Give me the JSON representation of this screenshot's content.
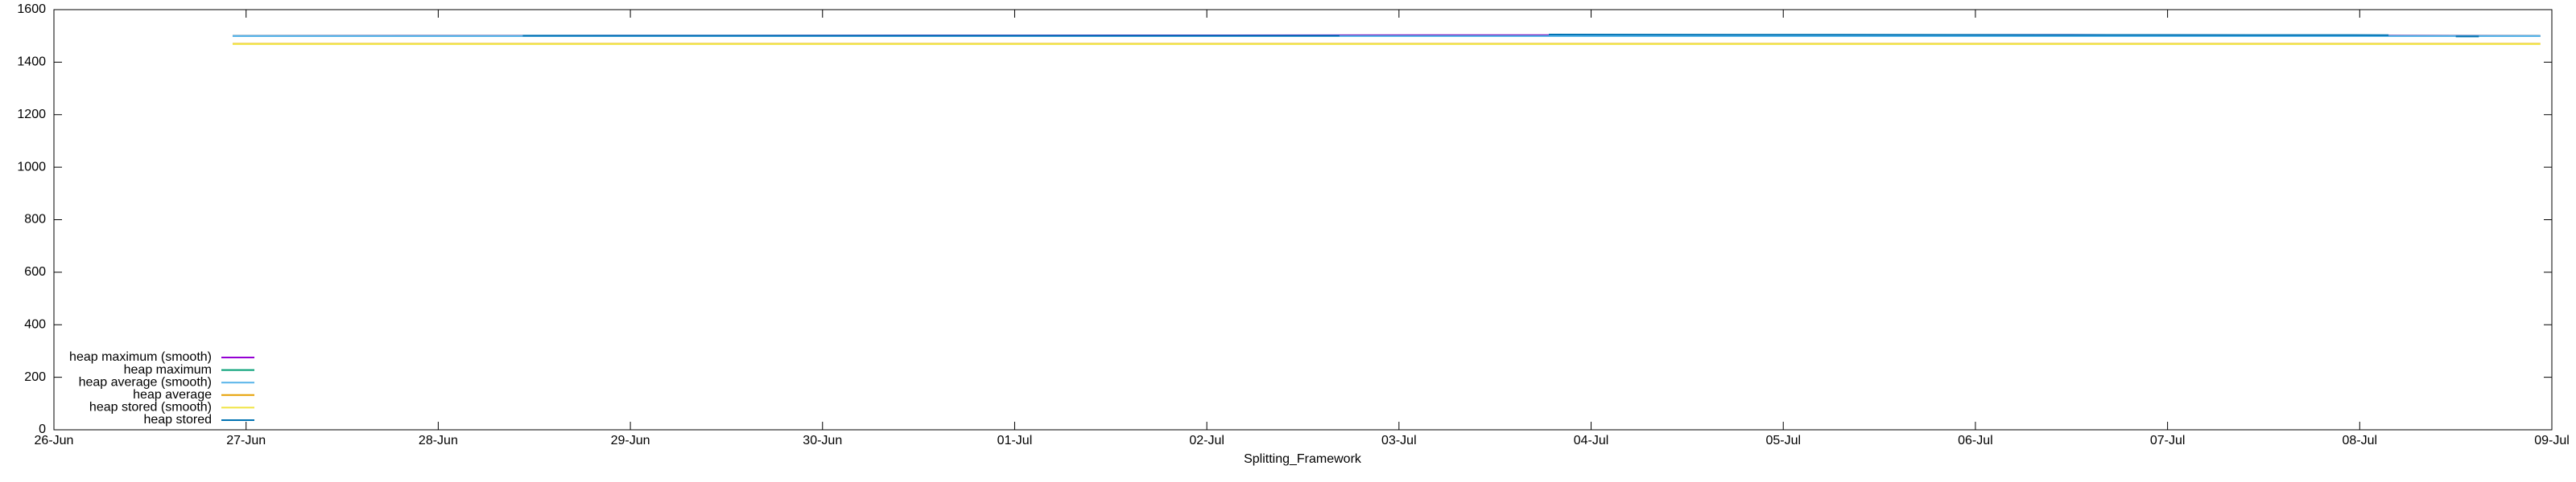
{
  "chart_data": {
    "type": "line",
    "xlabel": "Splitting_Framework",
    "xlim": [
      0,
      13
    ],
    "xticks": [
      {
        "value": 0,
        "label": "26-Jun"
      },
      {
        "value": 1,
        "label": "27-Jun"
      },
      {
        "value": 2,
        "label": "28-Jun"
      },
      {
        "value": 3,
        "label": "29-Jun"
      },
      {
        "value": 4,
        "label": "30-Jun"
      },
      {
        "value": 5,
        "label": "01-Jul"
      },
      {
        "value": 6,
        "label": "02-Jul"
      },
      {
        "value": 7,
        "label": "03-Jul"
      },
      {
        "value": 8,
        "label": "04-Jul"
      },
      {
        "value": 9,
        "label": "05-Jul"
      },
      {
        "value": 10,
        "label": "06-Jul"
      },
      {
        "value": 11,
        "label": "07-Jul"
      },
      {
        "value": 12,
        "label": "08-Jul"
      },
      {
        "value": 13,
        "label": "09-Jul"
      }
    ],
    "ylim": [
      0,
      1600
    ],
    "yticks": [
      0,
      200,
      400,
      600,
      800,
      1000,
      1200,
      1400,
      1600
    ],
    "legend": "bottom-left",
    "series": [
      {
        "name": "heap maximum (smooth)",
        "color": "#9400d3",
        "x": [
          0.93,
          7.78,
          10.5,
          11.4,
          12.94
        ],
        "values": [
          1500,
          1503,
          1504,
          1502,
          1500
        ]
      },
      {
        "name": "heap maximum",
        "color": "#009e73",
        "x": [
          0.93,
          12.94
        ],
        "values": [
          1500,
          1500
        ]
      },
      {
        "name": "heap average (smooth)",
        "color": "#56b4e9",
        "x": [
          0.93,
          12.94
        ],
        "values": [
          1499,
          1499
        ]
      },
      {
        "name": "heap average",
        "color": "#e69f00",
        "x": [
          0.93,
          12.94
        ],
        "values": [
          1470,
          1470
        ]
      },
      {
        "name": "heap stored (smooth)",
        "color": "#f0e442",
        "x": [
          0.93,
          12.94
        ],
        "values": [
          1469,
          1469
        ]
      },
      {
        "name": "heap stored",
        "color": "#0072b2",
        "x": [
          2.44,
          6.69,
          null,
          7.78,
          12.15,
          null,
          12.5,
          12.62
        ],
        "values": [
          1501,
          1501,
          null,
          1505,
          1503,
          null,
          1498,
          1498
        ]
      }
    ]
  }
}
